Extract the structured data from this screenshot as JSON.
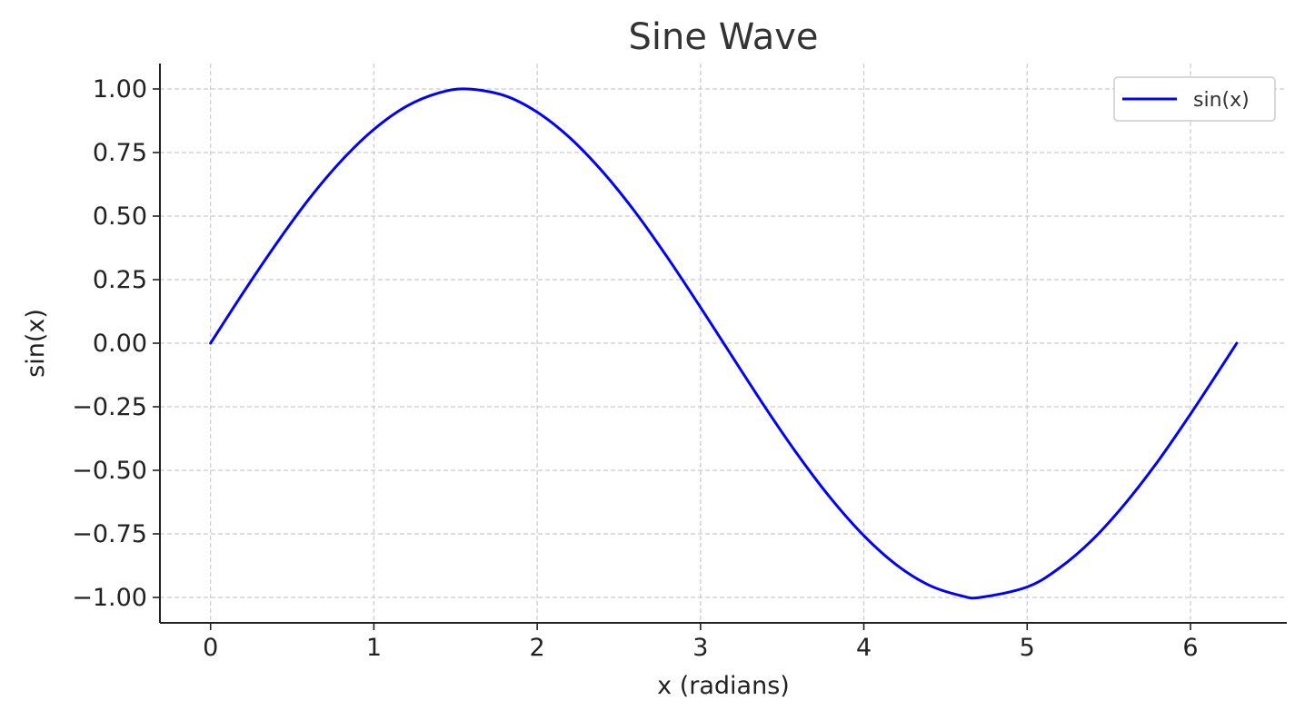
{
  "chart_data": {
    "type": "line",
    "title": "Sine Wave",
    "xlabel": "x (radians)",
    "ylabel": "sin(x)",
    "xlim": [
      -0.31,
      6.59
    ],
    "ylim": [
      -1.1,
      1.1
    ],
    "xticks": [
      0,
      1,
      2,
      3,
      4,
      5,
      6
    ],
    "xtick_labels": [
      "0",
      "1",
      "2",
      "3",
      "4",
      "5",
      "6"
    ],
    "yticks": [
      1.0,
      0.75,
      0.5,
      0.25,
      0.0,
      -0.25,
      -0.5,
      -0.75,
      -1.0
    ],
    "ytick_labels": [
      "1.00",
      "0.75",
      "0.50",
      "0.25",
      "0.00",
      "−0.25",
      "−0.50",
      "−0.75",
      "−1.00"
    ],
    "grid": true,
    "legend_position": "top-right",
    "series": [
      {
        "name": "sin(x)",
        "color": "#0000ff",
        "x": [
          0,
          0.2,
          0.4,
          0.6,
          0.8,
          1.0,
          1.2,
          1.4,
          1.5708,
          1.8,
          2.0,
          2.2,
          2.4,
          2.6,
          2.8,
          3.0,
          3.1416,
          3.4,
          3.6,
          3.8,
          4.0,
          4.2,
          4.4,
          4.6,
          4.7124,
          5.0,
          5.2,
          5.4,
          5.6,
          5.8,
          6.0,
          6.2,
          6.2832
        ],
        "y": [
          0.0,
          0.199,
          0.389,
          0.565,
          0.717,
          0.841,
          0.932,
          0.985,
          1.0,
          0.974,
          0.909,
          0.808,
          0.675,
          0.516,
          0.335,
          0.141,
          0.0,
          -0.256,
          -0.443,
          -0.612,
          -0.757,
          -0.872,
          -0.952,
          -0.994,
          -1.0,
          -0.959,
          -0.883,
          -0.773,
          -0.631,
          -0.465,
          -0.279,
          -0.083,
          0.0
        ]
      }
    ]
  }
}
